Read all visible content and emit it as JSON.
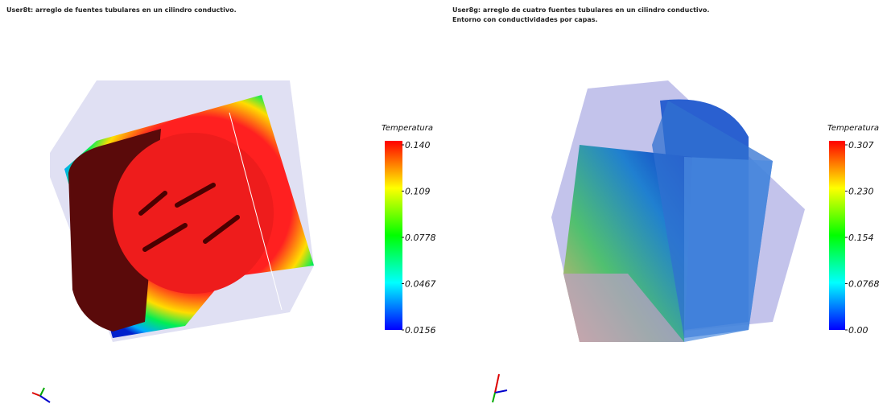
{
  "panels": [
    {
      "title": [
        "User8t: arreglo de  fuentes tubulares en un cilindro conductivo."
      ],
      "colorbar": {
        "title": "Temperatura",
        "labels": [
          "0.140",
          "0.109",
          "0.0778",
          "0.0467",
          "0.0156"
        ]
      }
    },
    {
      "title": [
        "User8g: arreglo de cuatro fuentes tubulares en un cilindro conductivo.",
        "Entorno con conductividades por capas."
      ],
      "colorbar": {
        "title": "Temperatura",
        "labels": [
          "0.307",
          "0.230",
          "0.154",
          "0.0768",
          "0.00"
        ]
      }
    }
  ]
}
